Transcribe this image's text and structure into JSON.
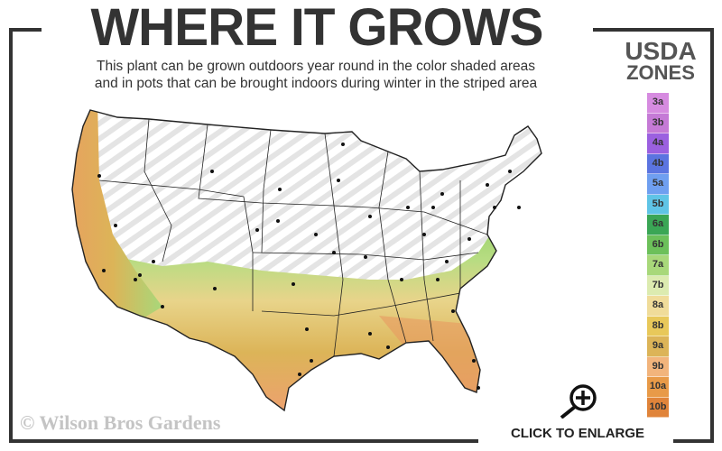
{
  "header": {
    "title": "WHERE IT GROWS",
    "subtitle_line1": "This plant can be grown outdoors year round in the color shaded areas",
    "subtitle_line2": "and in pots that can be brought indoors during winter in the striped area"
  },
  "legend": {
    "title_line1": "USDA",
    "title_line2": "ZONES",
    "zones": [
      {
        "label": "3a",
        "color": "#d68be0"
      },
      {
        "label": "3b",
        "color": "#c57ad6"
      },
      {
        "label": "4a",
        "color": "#9b60e0"
      },
      {
        "label": "4b",
        "color": "#5b74e0"
      },
      {
        "label": "5a",
        "color": "#6f9ff0"
      },
      {
        "label": "5b",
        "color": "#5fc4e6"
      },
      {
        "label": "6a",
        "color": "#3aa655"
      },
      {
        "label": "6b",
        "color": "#6cc05a"
      },
      {
        "label": "7a",
        "color": "#a8d87a"
      },
      {
        "label": "7b",
        "color": "#dcebb0"
      },
      {
        "label": "8a",
        "color": "#f0dc9a"
      },
      {
        "label": "8b",
        "color": "#e8c85a"
      },
      {
        "label": "9a",
        "color": "#dcb458"
      },
      {
        "label": "9b",
        "color": "#f2b47c"
      },
      {
        "label": "10a",
        "color": "#e89a48"
      },
      {
        "label": "10b",
        "color": "#e0843a"
      }
    ]
  },
  "map": {
    "icon": "us-hardiness-zone-map",
    "stripe_color": "#e6e6e6"
  },
  "footer": {
    "copyright": "© Wilson Bros Gardens",
    "enlarge_label": "CLICK TO ENLARGE",
    "enlarge_icon": "magnifier-plus-icon"
  }
}
